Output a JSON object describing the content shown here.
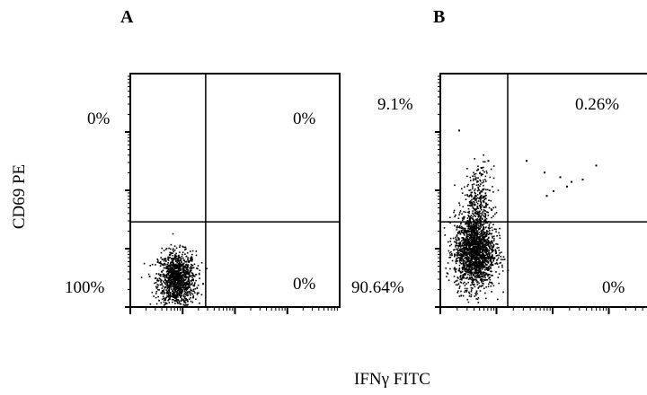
{
  "figure": {
    "ylabel": "CD69 PE",
    "xlabel": "IFNγ FITC"
  },
  "chart_data": [
    {
      "type": "scatter",
      "panel": "A",
      "xlabel": "IFNγ FITC",
      "ylabel": "CD69 PE",
      "quadrants": {
        "upper_left": "0%",
        "upper_right": "0%",
        "lower_left": "100%",
        "lower_right": "0%"
      },
      "gate": {
        "x": 0.36,
        "y": 0.365
      },
      "clusters": [
        {
          "cx": 0.22,
          "cy": 0.12,
          "sx": 0.045,
          "sy": 0.06,
          "n": 1200
        }
      ],
      "points": [],
      "xlim": [
        0,
        1
      ],
      "ylim": [
        0,
        1
      ]
    },
    {
      "type": "scatter",
      "panel": "B",
      "xlabel": "IFNγ FITC",
      "ylabel": "CD69 PE",
      "quadrants": {
        "upper_left": "9.1%",
        "upper_right": "0.26%",
        "lower_left": "90.64%",
        "lower_right": "0%"
      },
      "gate": {
        "x": 0.3,
        "y": 0.365
      },
      "clusters": [
        {
          "cx": 0.15,
          "cy": 0.24,
          "sx": 0.045,
          "sy": 0.08,
          "n": 1800
        },
        {
          "cx": 0.165,
          "cy": 0.46,
          "sx": 0.03,
          "sy": 0.07,
          "n": 280
        }
      ],
      "points": [
        [
          0.08,
          0.76
        ],
        [
          0.18,
          0.6
        ],
        [
          0.21,
          0.63
        ],
        [
          0.38,
          0.63
        ],
        [
          0.46,
          0.58
        ],
        [
          0.53,
          0.56
        ],
        [
          0.56,
          0.52
        ],
        [
          0.58,
          0.54
        ],
        [
          0.63,
          0.55
        ],
        [
          0.69,
          0.61
        ],
        [
          0.5,
          0.5
        ],
        [
          0.47,
          0.48
        ]
      ],
      "xlim": [
        0,
        1
      ],
      "ylim": [
        0,
        1
      ]
    }
  ]
}
